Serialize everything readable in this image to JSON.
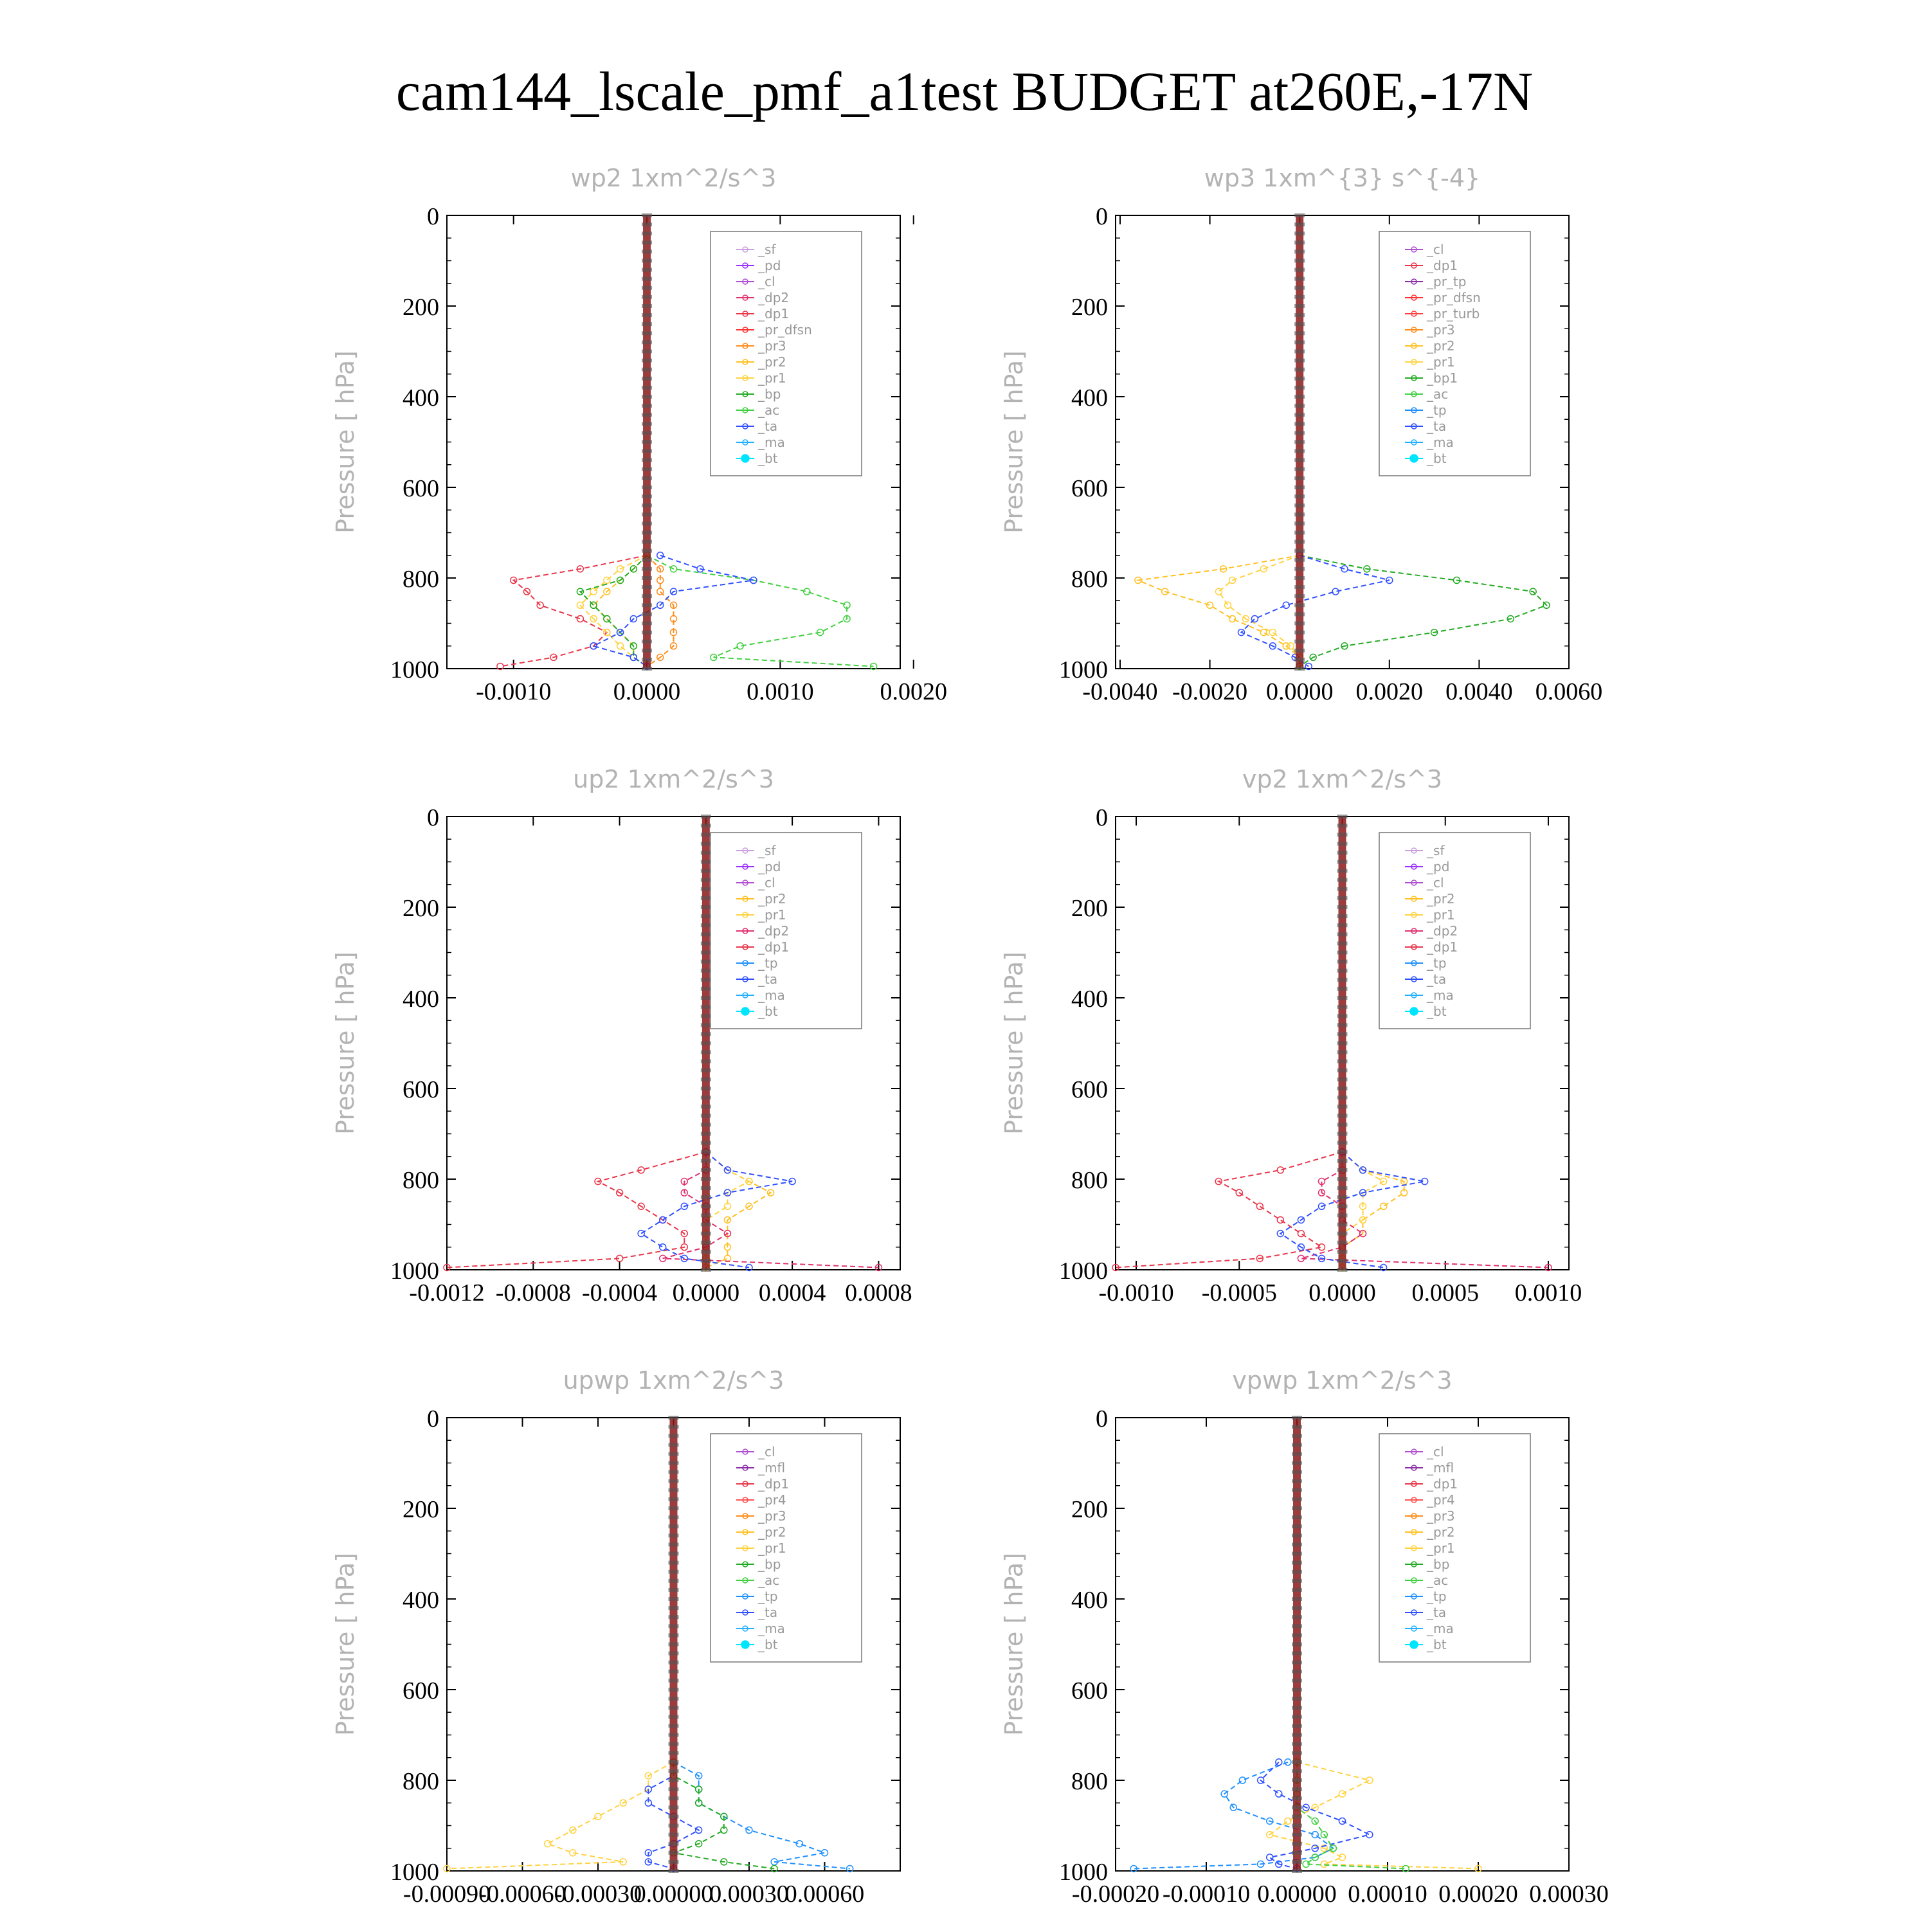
{
  "title": "cam144_lscale_pmf_a1test  BUDGET at260E,-17N",
  "style": {
    "series_colors": {
      "_sf": "#c9a0dc",
      "_pd": "#9b30ff",
      "_cl": "#b04fd0",
      "_mfl": "#8b2fa8",
      "_dp2": "#e0306e",
      "_dp1": "#e8364a",
      "_pr_dfsn": "#ff3030",
      "_pr_tp": "#8b2fa8",
      "_pr_turb": "#ff4040",
      "_pr4": "#ff5050",
      "_pr3": "#ff8c1a",
      "_pr2": "#ffc020",
      "_pr1": "#ffd23f",
      "_bp1": "#22aa22",
      "_bp": "#22aa22",
      "_ac": "#40d040",
      "_tp": "#1e90ff",
      "_ta": "#3050ff",
      "_ma": "#20b0ff",
      "_bt": "#00e5ff"
    },
    "bold_color": "#8b1a1a",
    "axis_title_color": "#b3b3b3"
  },
  "chart_data": [
    {
      "type": "line",
      "title": "wp2   1xm^2/s^3",
      "ylabel": "Pressure [ hPa]",
      "xlim": [
        -0.0015,
        0.0019
      ],
      "ylim": [
        0,
        1000
      ],
      "xticks": [
        -0.001,
        0.0,
        0.001,
        0.002
      ],
      "xtick_labels": [
        "-0.0010",
        "0.0000",
        "0.0010",
        "0.0020"
      ],
      "yticks": [
        0,
        200,
        400,
        600,
        800,
        1000
      ],
      "ytick_labels": [
        "0",
        "200",
        "400",
        "600",
        "800",
        "1000"
      ],
      "legend_position": "top-right",
      "legend": [
        "_sf",
        "_pd",
        "_cl",
        "_dp2",
        "_dp1",
        "_pr_dfsn",
        "_pr3",
        "_pr2",
        "_pr1",
        "_bp",
        "_ac",
        "_ta",
        "_ma",
        "_bt"
      ],
      "pressure": [
        750,
        780,
        805,
        830,
        860,
        890,
        920,
        950,
        975,
        995
      ],
      "series": [
        {
          "name": "_dp1",
          "values": [
            0,
            -0.0005,
            -0.001,
            -0.0009,
            -0.0008,
            -0.0005,
            -0.0003,
            -0.0004,
            -0.0007,
            -0.0011
          ]
        },
        {
          "name": "_pr3",
          "values": [
            0,
            0.0001,
            0.0001,
            0.0001,
            0.0002,
            0.0002,
            0.0002,
            0.0002,
            0.0001,
            0
          ]
        },
        {
          "name": "_pr2",
          "values": [
            0,
            -0.0001,
            -0.0002,
            -0.0003,
            -0.0004,
            -0.0003,
            -0.0002,
            -0.0001,
            -0.0001,
            0
          ]
        },
        {
          "name": "_pr1",
          "values": [
            0,
            -0.0002,
            -0.0003,
            -0.0004,
            -0.0005,
            -0.0004,
            -0.0003,
            -0.0002,
            -0.0001,
            0
          ]
        },
        {
          "name": "_bp",
          "values": [
            0,
            -0.0001,
            -0.0002,
            -0.0005,
            -0.0004,
            -0.0003,
            -0.0002,
            -0.0001,
            -0.0001,
            0
          ]
        },
        {
          "name": "_ac",
          "values": [
            0,
            0.0002,
            0.0008,
            0.0012,
            0.0015,
            0.0015,
            0.0013,
            0.0007,
            0.0005,
            0.0017
          ]
        },
        {
          "name": "_ta",
          "values": [
            0.0001,
            0.0004,
            0.0008,
            0.0002,
            0.0001,
            -0.0001,
            -0.0002,
            -0.0004,
            -0.0001,
            0
          ]
        }
      ]
    },
    {
      "type": "line",
      "title": "wp3   1xm^{3} s^{-4}",
      "ylabel": "Pressure [ hPa]",
      "xlim": [
        -0.0041,
        0.006
      ],
      "ylim": [
        0,
        1000
      ],
      "xticks": [
        -0.004,
        -0.002,
        0.0,
        0.002,
        0.004,
        0.006
      ],
      "xtick_labels": [
        "-0.0040",
        "-0.0020",
        "0.0000",
        "0.0020",
        "0.0040",
        "0.0060"
      ],
      "yticks": [
        0,
        200,
        400,
        600,
        800,
        1000
      ],
      "ytick_labels": [
        "0",
        "200",
        "400",
        "600",
        "800",
        "1000"
      ],
      "legend_position": "top-right",
      "legend": [
        "_cl",
        "_dp1",
        "_pr_tp",
        "_pr_dfsn",
        "_pr_turb",
        "_pr3",
        "_pr2",
        "_pr1",
        "_bp1",
        "_ac",
        "_tp",
        "_ta",
        "_ma",
        "_bt"
      ],
      "pressure": [
        750,
        780,
        805,
        830,
        860,
        890,
        920,
        950,
        975,
        995
      ],
      "series": [
        {
          "name": "_pr2",
          "values": [
            0,
            -0.0017,
            -0.0036,
            -0.003,
            -0.002,
            -0.0015,
            -0.0008,
            -0.0003,
            0,
            0
          ]
        },
        {
          "name": "_pr1",
          "values": [
            0,
            -0.0008,
            -0.0015,
            -0.0018,
            -0.0016,
            -0.0012,
            -0.0006,
            -0.0002,
            0,
            0
          ]
        },
        {
          "name": "_bp1",
          "values": [
            0,
            0.0015,
            0.0035,
            0.0052,
            0.0055,
            0.0047,
            0.003,
            0.001,
            0.0003,
            0
          ]
        },
        {
          "name": "_ta",
          "values": [
            0,
            0.001,
            0.002,
            0.0008,
            -0.0003,
            -0.001,
            -0.0013,
            -0.0006,
            -0.0001,
            0.0002
          ]
        }
      ]
    },
    {
      "type": "line",
      "title": "up2   1xm^2/s^3",
      "ylabel": "Pressure [ hPa]",
      "xlim": [
        -0.0012,
        0.0009
      ],
      "ylim": [
        0,
        1000
      ],
      "xticks": [
        -0.0012,
        -0.0008,
        -0.0004,
        0.0,
        0.0004,
        0.0008
      ],
      "xtick_labels": [
        "-0.0012",
        "-0.0008",
        "-0.0004",
        "0.0000",
        "0.0004",
        "0.0008"
      ],
      "yticks": [
        0,
        200,
        400,
        600,
        800,
        1000
      ],
      "ytick_labels": [
        "0",
        "200",
        "400",
        "600",
        "800",
        "1000"
      ],
      "legend_position": "top-right",
      "legend": [
        "_sf",
        "_pd",
        "_cl",
        "_pr2",
        "_pr1",
        "_dp2",
        "_dp1",
        "_tp",
        "_ta",
        "_ma",
        "_bt"
      ],
      "pressure": [
        740,
        780,
        805,
        830,
        860,
        890,
        920,
        950,
        975,
        995
      ],
      "series": [
        {
          "name": "_dp1",
          "values": [
            0,
            -0.0003,
            -0.0005,
            -0.0004,
            -0.0003,
            -0.0002,
            -0.0001,
            -0.0001,
            -0.0004,
            -0.0012
          ]
        },
        {
          "name": "_pr2",
          "values": [
            0,
            0.0001,
            0.0002,
            0.0003,
            0.0002,
            0.0001,
            0.0001,
            0.0001,
            0.0001,
            0
          ]
        },
        {
          "name": "_pr1",
          "values": [
            0,
            0.0001,
            0.0002,
            0.0001,
            0.0001,
            0,
            0,
            0,
            0,
            0
          ]
        },
        {
          "name": "_dp2",
          "values": [
            0,
            0,
            -0.0001,
            -0.0001,
            0,
            0,
            0.0001,
            0,
            -0.0002,
            0.0008
          ]
        },
        {
          "name": "_ta",
          "values": [
            0,
            0.0001,
            0.0004,
            0.0001,
            -0.0001,
            -0.0002,
            -0.0003,
            -0.0002,
            -0.0001,
            0.0002
          ]
        }
      ]
    },
    {
      "type": "line",
      "title": "vp2   1xm^2/s^3",
      "ylabel": "Pressure [ hPa]",
      "xlim": [
        -0.0011,
        0.0011
      ],
      "ylim": [
        0,
        1000
      ],
      "xticks": [
        -0.001,
        -0.0005,
        0.0,
        0.0005,
        0.001
      ],
      "xtick_labels": [
        "-0.0010",
        "-0.0005",
        "0.0000",
        "0.0005",
        "0.0010"
      ],
      "yticks": [
        0,
        200,
        400,
        600,
        800,
        1000
      ],
      "ytick_labels": [
        "0",
        "200",
        "400",
        "600",
        "800",
        "1000"
      ],
      "legend_position": "top-right",
      "legend": [
        "_sf",
        "_pd",
        "_cl",
        "_pr2",
        "_pr1",
        "_dp2",
        "_dp1",
        "_tp",
        "_ta",
        "_ma",
        "_bt"
      ],
      "pressure": [
        740,
        780,
        805,
        830,
        860,
        890,
        920,
        950,
        975,
        995
      ],
      "series": [
        {
          "name": "_dp1",
          "values": [
            0,
            -0.0003,
            -0.0006,
            -0.0005,
            -0.0004,
            -0.0003,
            -0.0002,
            -0.0001,
            -0.0004,
            -0.0011
          ]
        },
        {
          "name": "_pr2",
          "values": [
            0,
            0.0001,
            0.0003,
            0.0003,
            0.0002,
            0.0001,
            0.0001,
            0,
            0,
            0
          ]
        },
        {
          "name": "_pr1",
          "values": [
            0,
            0.0001,
            0.0002,
            0.0001,
            0.0001,
            0.0001,
            0,
            0,
            0,
            0
          ]
        },
        {
          "name": "_dp2",
          "values": [
            0,
            0,
            -0.0001,
            -0.0001,
            0,
            0,
            0.0001,
            0,
            -0.0002,
            0.001
          ]
        },
        {
          "name": "_ta",
          "values": [
            0,
            0.0001,
            0.0004,
            0.0001,
            -0.0001,
            -0.0002,
            -0.0003,
            -0.0002,
            -0.0001,
            0.0002
          ]
        }
      ]
    },
    {
      "type": "line",
      "title": "upwp   1xm^2/s^3",
      "ylabel": "Pressure [ hPa]",
      "xlim": [
        -0.0009,
        0.0009
      ],
      "ylim": [
        0,
        1000
      ],
      "xticks": [
        -0.0009,
        -0.0006,
        -0.0003,
        0.0,
        0.0003,
        0.0006
      ],
      "xtick_labels": [
        "-0.00090",
        "-0.00060",
        "-0.00030",
        "0.00000",
        "0.00030",
        "0.00060"
      ],
      "yticks": [
        0,
        200,
        400,
        600,
        800,
        1000
      ],
      "ytick_labels": [
        "0",
        "200",
        "400",
        "600",
        "800",
        "1000"
      ],
      "legend_position": "top-right",
      "legend": [
        "_cl",
        "_mfl",
        "_dp1",
        "_pr4",
        "_pr3",
        "_pr2",
        "_pr1",
        "_bp",
        "_ac",
        "_tp",
        "_ta",
        "_ma",
        "_bt"
      ],
      "pressure": [
        760,
        790,
        820,
        850,
        880,
        910,
        940,
        960,
        980,
        995
      ],
      "series": [
        {
          "name": "_pr1",
          "values": [
            0,
            -0.0001,
            -0.0001,
            -0.0002,
            -0.0003,
            -0.0004,
            -0.0005,
            -0.0004,
            -0.0002,
            -0.0009
          ]
        },
        {
          "name": "_tp",
          "values": [
            0,
            0.0001,
            0.0001,
            0.0001,
            0.0002,
            0.0003,
            0.0005,
            0.0006,
            0.0004,
            0.0007
          ]
        },
        {
          "name": "_ta",
          "values": [
            0,
            0,
            -0.0001,
            -0.0001,
            0,
            0.0001,
            0,
            -0.0001,
            -0.0001,
            0
          ]
        },
        {
          "name": "_bp",
          "values": [
            0,
            0,
            0.0001,
            0.0001,
            0.0002,
            0.0002,
            0.0001,
            0,
            0.0002,
            0.0004
          ]
        }
      ]
    },
    {
      "type": "line",
      "title": "vpwp   1xm^2/s^3",
      "ylabel": "Pressure [ hPa]",
      "xlim": [
        -0.0002,
        0.0003
      ],
      "ylim": [
        0,
        1000
      ],
      "xticks": [
        -0.0002,
        -0.0001,
        0.0,
        0.0001,
        0.0002,
        0.0003
      ],
      "xtick_labels": [
        "-0.00020",
        "-0.00010",
        "0.00000",
        "0.00010",
        "0.00020",
        "0.00030"
      ],
      "yticks": [
        0,
        200,
        400,
        600,
        800,
        1000
      ],
      "ytick_labels": [
        "0",
        "200",
        "400",
        "600",
        "800",
        "1000"
      ],
      "legend_position": "top-right",
      "legend": [
        "_cl",
        "_mfl",
        "_dp1",
        "_pr4",
        "_pr3",
        "_pr2",
        "_pr1",
        "_bp",
        "_ac",
        "_tp",
        "_ta",
        "_ma",
        "_bt"
      ],
      "pressure": [
        760,
        800,
        830,
        860,
        890,
        920,
        950,
        970,
        985,
        995
      ],
      "series": [
        {
          "name": "_pr1",
          "values": [
            0,
            8e-05,
            5e-05,
            2e-05,
            -1e-05,
            -3e-05,
            3e-05,
            5e-05,
            3e-05,
            0.0002
          ]
        },
        {
          "name": "_tp",
          "values": [
            -1e-05,
            -6e-05,
            -8e-05,
            -7e-05,
            -3e-05,
            2e-05,
            4e-05,
            2e-05,
            -4e-05,
            -0.00018
          ]
        },
        {
          "name": "_ta",
          "values": [
            -2e-05,
            -4e-05,
            -2e-05,
            1e-05,
            5e-05,
            8e-05,
            2e-05,
            -3e-05,
            -2e-05,
            0
          ]
        },
        {
          "name": "_ac",
          "values": [
            0,
            0,
            0,
            0,
            2e-05,
            3e-05,
            4e-05,
            2e-05,
            1e-05,
            0.00012
          ]
        }
      ]
    }
  ]
}
